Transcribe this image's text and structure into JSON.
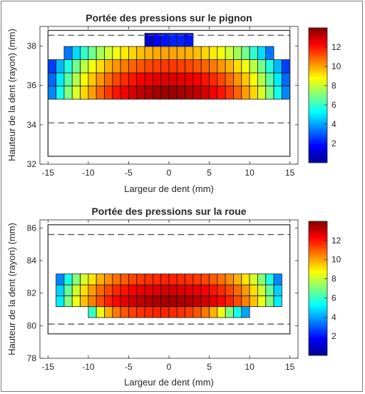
{
  "chart_data": [
    {
      "type": "heatmap",
      "title": "Portée des pressions sur le pignon",
      "xlabel": "Largeur de dent (mm)",
      "ylabel": "Hauteur de la dent (rayon) (mm)",
      "xlim": [
        -16,
        16
      ],
      "ylim": [
        32,
        39
      ],
      "xticks": [
        -15,
        -10,
        -5,
        0,
        5,
        10,
        15
      ],
      "xtick_labels": [
        "-15",
        "-10",
        "-5",
        "0",
        "5",
        "10",
        "15"
      ],
      "yticks": [
        32,
        34,
        36,
        38
      ],
      "ytick_labels": [
        "32",
        "34",
        "36",
        "38"
      ],
      "colorbar": {
        "min": 0,
        "max": 14,
        "ticks": [
          2,
          4,
          6,
          8,
          10,
          12
        ],
        "tick_labels": [
          "2",
          "4",
          "6",
          "8",
          "10",
          "12"
        ],
        "colormap": "jet"
      },
      "outline": {
        "x": [
          -15,
          15
        ],
        "y": [
          32.4,
          38.8
        ]
      },
      "dashed_lines_y": [
        34.1,
        38.55
      ],
      "cell_width": 1,
      "row_height": 0.67,
      "rows": [
        {
          "y": 35.3,
          "x_start": -15,
          "values": [
            3.6,
            5.5,
            7.0,
            8.2,
            9.3,
            10.1,
            10.9,
            11.5,
            12.0,
            12.4,
            12.8,
            13.1,
            13.3,
            13.5,
            13.6,
            13.6,
            13.5,
            13.3,
            13.1,
            12.8,
            12.4,
            12.0,
            11.5,
            10.9,
            10.1,
            9.3,
            8.2,
            7.0,
            5.5,
            3.6
          ]
        },
        {
          "y": 35.97,
          "x_start": -15,
          "values": [
            3.2,
            5.0,
            6.5,
            7.7,
            8.7,
            9.5,
            10.2,
            10.8,
            11.3,
            11.7,
            12.0,
            12.3,
            12.5,
            12.6,
            12.7,
            12.7,
            12.6,
            12.5,
            12.3,
            12.0,
            11.7,
            11.3,
            10.8,
            10.2,
            9.5,
            8.7,
            7.7,
            6.5,
            5.0,
            3.2
          ]
        },
        {
          "y": 36.64,
          "x_start": -15,
          "values": [
            2.6,
            4.3,
            5.7,
            6.8,
            7.8,
            8.6,
            9.2,
            9.8,
            10.2,
            10.6,
            10.9,
            11.1,
            11.3,
            11.4,
            11.5,
            11.5,
            11.4,
            11.3,
            11.1,
            10.9,
            10.6,
            10.2,
            9.8,
            9.2,
            8.6,
            7.8,
            6.8,
            5.7,
            4.3,
            2.6
          ]
        },
        {
          "y": 37.31,
          "x_start": -13,
          "values": [
            3.4,
            4.8,
            5.9,
            6.8,
            7.5,
            8.1,
            8.6,
            9.0,
            9.3,
            9.6,
            9.8,
            9.9,
            10.0,
            10.0,
            9.9,
            9.8,
            9.6,
            9.3,
            9.0,
            8.6,
            8.1,
            7.5,
            6.8,
            5.9,
            4.8,
            3.4
          ]
        },
        {
          "y": 37.98,
          "x_start": -3,
          "values": [
            1.0,
            1.6,
            2.0,
            2.2,
            2.2,
            2.0
          ]
        }
      ]
    },
    {
      "type": "heatmap",
      "title": "Portée des pressions sur la roue",
      "xlabel": "Largeur de dent (mm)",
      "ylabel": "Hauteur de la dent (rayon) (mm)",
      "xlim": [
        -16,
        16
      ],
      "ylim": [
        78,
        86.5
      ],
      "xticks": [
        -15,
        -10,
        -5,
        0,
        5,
        10,
        15
      ],
      "xtick_labels": [
        "-15",
        "-10",
        "-5",
        "0",
        "5",
        "10",
        "15"
      ],
      "yticks": [
        78,
        80,
        82,
        84,
        86
      ],
      "ytick_labels": [
        "78",
        "80",
        "82",
        "84",
        "86"
      ],
      "colorbar": {
        "min": 0,
        "max": 14,
        "ticks": [
          2,
          4,
          6,
          8,
          10,
          12
        ],
        "tick_labels": [
          "2",
          "4",
          "6",
          "8",
          "10",
          "12"
        ],
        "colormap": "jet"
      },
      "outline": {
        "x": [
          -15,
          15
        ],
        "y": [
          79.5,
          86.2
        ]
      },
      "dashed_lines_y": [
        80.1,
        85.6
      ],
      "cell_width": 1,
      "row_height": 0.67,
      "rows": [
        {
          "y": 80.5,
          "x_start": -10,
          "values": [
            6.0,
            8.5,
            9.8,
            10.6,
            11.1,
            11.4,
            11.6,
            11.7,
            11.8,
            11.8,
            11.7,
            11.6,
            11.4,
            11.1,
            10.6,
            9.8,
            8.5,
            7.0,
            5.5,
            4.0
          ]
        },
        {
          "y": 81.17,
          "x_start": -14,
          "values": [
            5.0,
            7.0,
            8.5,
            9.6,
            10.5,
            11.2,
            11.8,
            12.2,
            12.6,
            12.9,
            13.1,
            13.3,
            13.4,
            13.5,
            13.5,
            13.4,
            13.3,
            13.1,
            12.9,
            12.6,
            12.2,
            11.8,
            11.2,
            10.5,
            9.6,
            8.5,
            7.0,
            5.0
          ]
        },
        {
          "y": 81.84,
          "x_start": -14,
          "values": [
            4.6,
            6.6,
            8.1,
            9.2,
            10.1,
            10.8,
            11.3,
            11.7,
            12.0,
            12.3,
            12.5,
            12.6,
            12.7,
            12.8,
            12.8,
            12.7,
            12.6,
            12.5,
            12.3,
            12.0,
            11.7,
            11.3,
            10.8,
            10.1,
            9.2,
            8.1,
            6.6,
            4.6
          ]
        },
        {
          "y": 82.51,
          "x_start": -14,
          "values": [
            3.6,
            5.6,
            7.1,
            8.2,
            9.1,
            9.8,
            10.3,
            10.7,
            11.0,
            11.3,
            11.5,
            11.6,
            11.7,
            11.8,
            11.8,
            11.7,
            11.6,
            11.5,
            11.3,
            11.0,
            10.7,
            10.3,
            9.8,
            9.1,
            8.2,
            7.1,
            5.6,
            3.6
          ]
        }
      ]
    }
  ]
}
